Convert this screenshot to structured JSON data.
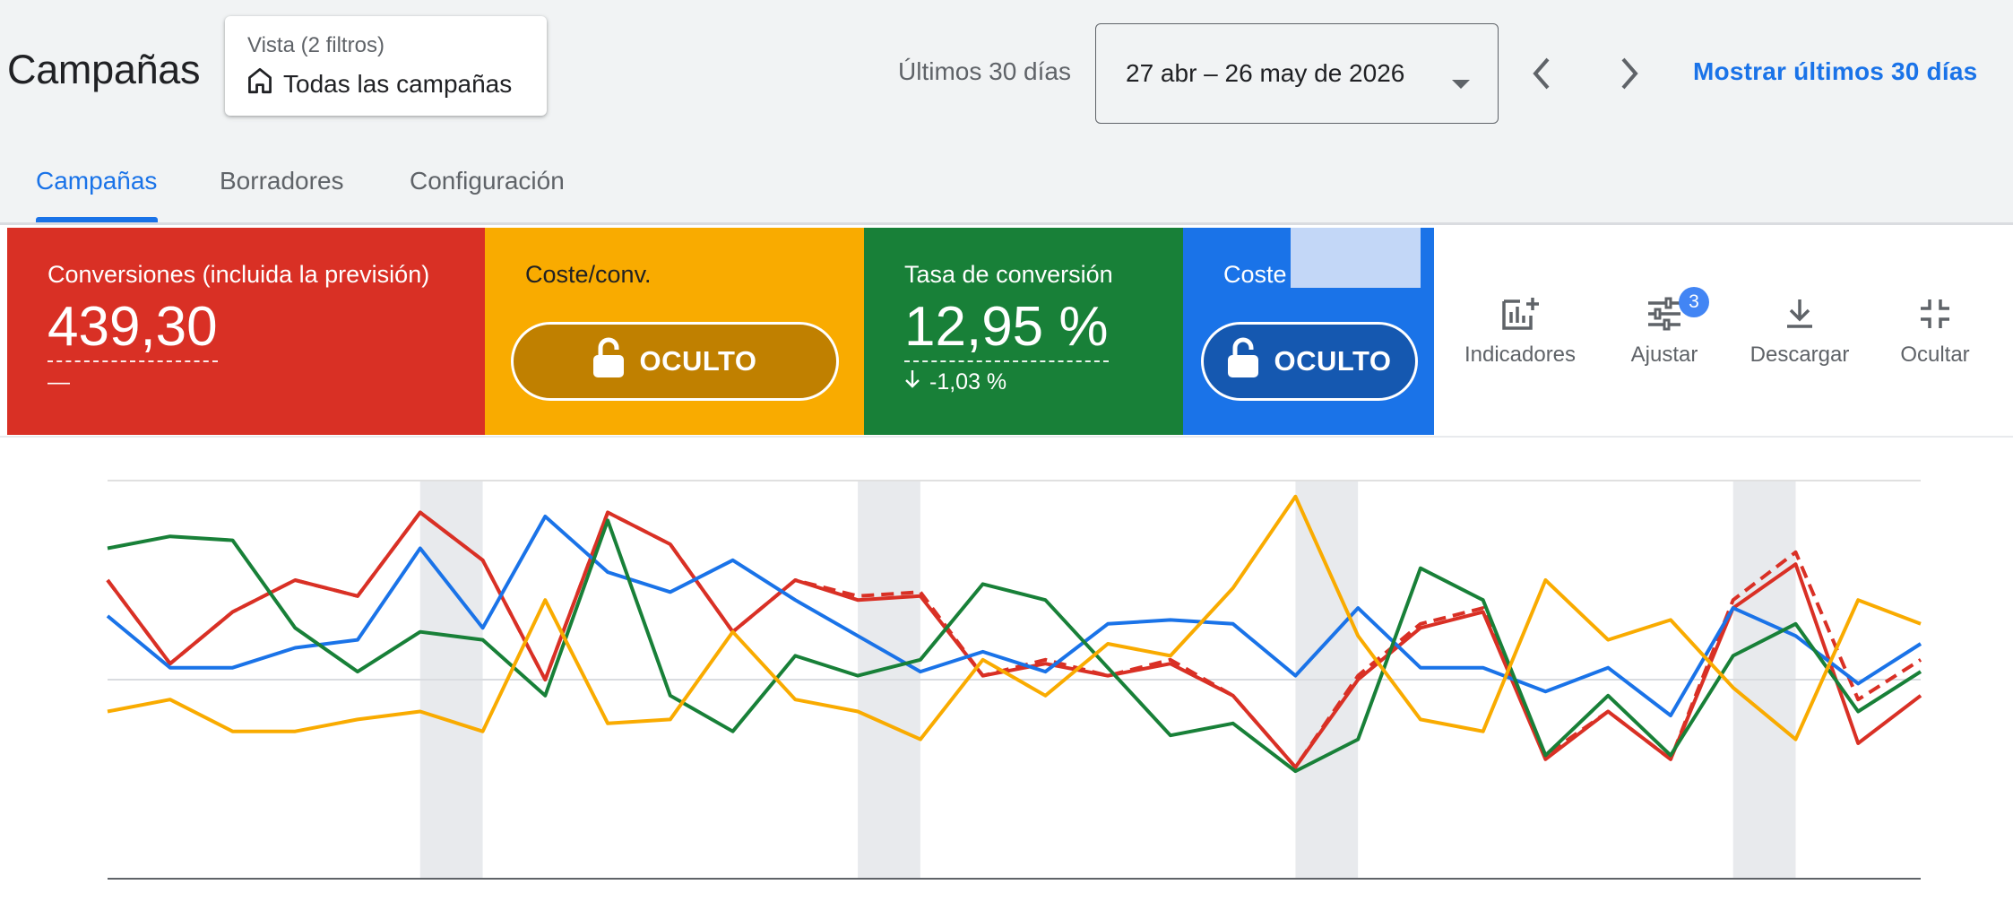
{
  "header": {
    "title": "Campañas",
    "view_selector": {
      "caption": "Vista (2 filtros)",
      "value": "Todas las campañas",
      "icon": "home-outline-icon"
    },
    "range_label": "Últimos 30 días",
    "date_range": "27 abr – 26 may de 2026",
    "show_last_link": "Mostrar últimos 30 días"
  },
  "tabs": [
    {
      "label": "Campañas",
      "active": true
    },
    {
      "label": "Borradores",
      "active": false
    },
    {
      "label": "Configuración",
      "active": false
    }
  ],
  "metrics": {
    "conversions": {
      "label": "Conversiones (incluida la previsión)",
      "value": "439,30",
      "change": "—",
      "color": "#d93025"
    },
    "cost_per_conv": {
      "label": "Coste/conv.",
      "hidden_label": "OCULTO",
      "color": "#f9ab00",
      "pill_color": "#c08000"
    },
    "conv_rate": {
      "label": "Tasa de conversión",
      "value": "12,95 %",
      "change": "-1,03 %",
      "color": "#188038"
    },
    "cost": {
      "label": "Coste",
      "hidden_label": "OCULTO",
      "color": "#1a73e8",
      "pill_color": "#1558b0"
    }
  },
  "toolbar": {
    "indicators": "Indicadores",
    "adjust": "Ajustar",
    "adjust_badge": "3",
    "download": "Descargar",
    "hide": "Ocultar"
  },
  "chart_data": {
    "type": "line",
    "ylim": [
      0,
      100
    ],
    "grid": true,
    "weekend_bands": [
      [
        5,
        6
      ],
      [
        12,
        13
      ],
      [
        19,
        20
      ],
      [
        26,
        27
      ]
    ],
    "x": [
      0,
      1,
      2,
      3,
      4,
      5,
      6,
      7,
      8,
      9,
      10,
      11,
      12,
      13,
      14,
      15,
      16,
      17,
      18,
      19,
      20,
      21,
      22,
      23,
      24,
      25,
      26,
      27,
      28,
      29
    ],
    "series": [
      {
        "color": "#d93025",
        "dashed": false,
        "values": [
          75,
          54,
          67,
          75,
          71,
          92,
          80,
          50,
          92,
          84,
          62,
          75,
          70,
          71,
          51,
          54,
          51,
          54,
          46,
          28,
          50,
          63,
          67,
          30,
          42,
          30,
          68,
          79,
          34,
          46
        ]
      },
      {
        "color": "#d93025",
        "dashed": true,
        "values": [
          75,
          54,
          67,
          75,
          71,
          92,
          80,
          50,
          92,
          84,
          62,
          75,
          71,
          72,
          51,
          55,
          51,
          55,
          46,
          28,
          51,
          64,
          68,
          31,
          42,
          30,
          70,
          82,
          45,
          55
        ]
      },
      {
        "color": "#1a73e8",
        "dashed": false,
        "values": [
          66,
          53,
          53,
          58,
          60,
          83,
          63,
          91,
          77,
          72,
          80,
          70,
          61,
          52,
          57,
          52,
          64,
          65,
          64,
          51,
          68,
          53,
          53,
          47,
          53,
          41,
          68,
          61,
          49,
          59
        ]
      },
      {
        "color": "#188038",
        "dashed": false,
        "values": [
          83,
          86,
          85,
          63,
          52,
          62,
          60,
          46,
          90,
          46,
          37,
          56,
          51,
          55,
          74,
          70,
          53,
          36,
          39,
          27,
          35,
          78,
          70,
          31,
          46,
          31,
          56,
          64,
          42,
          52
        ]
      },
      {
        "color": "#f9ab00",
        "dashed": false,
        "values": [
          42,
          45,
          37,
          37,
          40,
          42,
          37,
          70,
          39,
          40,
          62,
          45,
          42,
          35,
          55,
          46,
          59,
          56,
          73,
          96,
          61,
          40,
          37,
          75,
          60,
          65,
          48,
          35,
          70,
          64
        ]
      }
    ]
  }
}
